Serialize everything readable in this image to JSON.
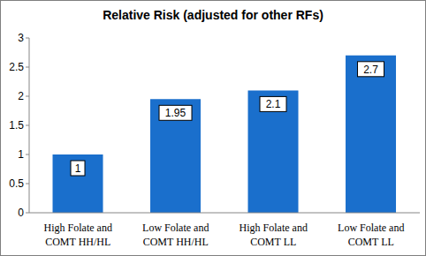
{
  "chart_data": {
    "type": "bar",
    "title": "Relative Risk (adjusted for other RFs)",
    "categories": [
      "High Folate and COMT HH/HL",
      "Low Folate and COMT HH/HL",
      "High Folate and COMT LL",
      "Low Folate and COMT LL"
    ],
    "values": [
      1,
      1.95,
      2.1,
      2.7
    ],
    "color": "#1a6fcc",
    "ylim": [
      0,
      3
    ],
    "yticks": [
      0,
      0.5,
      1,
      1.5,
      2,
      2.5,
      3
    ],
    "grid": false,
    "data_labels": true
  }
}
